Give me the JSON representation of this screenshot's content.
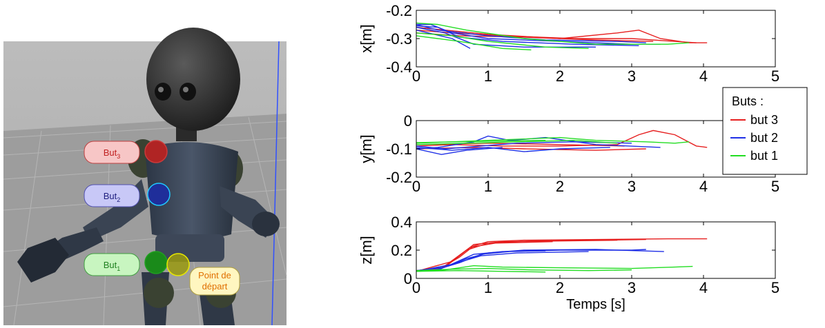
{
  "scene": {
    "labels": [
      {
        "id": "but3",
        "text": "But",
        "sub": "3",
        "fill": "#f7c6c6",
        "stroke": "#c04040",
        "text_color": "#c02020",
        "sphere": "#b02424"
      },
      {
        "id": "but2",
        "text": "But",
        "sub": "2",
        "fill": "#c8c8f7",
        "stroke": "#5050b0",
        "text_color": "#202080",
        "sphere": "#1f2e9a"
      },
      {
        "id": "but1",
        "text": "But",
        "sub": "1",
        "fill": "#c8f5c0",
        "stroke": "#40a040",
        "text_color": "#208020",
        "sphere": "#1a8a1a"
      },
      {
        "id": "start",
        "text": "Point de",
        "text2": "départ",
        "fill": "#fff6c0",
        "stroke": "#b0a040",
        "text_color": "#e07000",
        "sphere": "#9a9a10"
      }
    ]
  },
  "colors": {
    "but3": "#e61e1e",
    "but2": "#1e2ee6",
    "but1": "#22dd22"
  },
  "chart_data": [
    {
      "type": "line",
      "ylabel": "x[m]",
      "xlim": [
        0,
        5
      ],
      "ylim": [
        -0.4,
        -0.2
      ],
      "xticks": [
        "0",
        "1",
        "2",
        "3",
        "4",
        "5"
      ],
      "yticks": [
        "-0.4",
        "-0.3",
        "-0.2"
      ],
      "series": [
        {
          "name": "but 3",
          "color": "#e61e1e",
          "lines": [
            [
              [
                0,
                -0.26
              ],
              [
                0.4,
                -0.27
              ],
              [
                1,
                -0.285
              ],
              [
                2,
                -0.3
              ],
              [
                2.8,
                -0.28
              ],
              [
                3.1,
                -0.27
              ],
              [
                3.4,
                -0.3
              ],
              [
                3.8,
                -0.315
              ],
              [
                4.05,
                -0.315
              ]
            ],
            [
              [
                0,
                -0.27
              ],
              [
                0.5,
                -0.28
              ],
              [
                1.2,
                -0.29
              ],
              [
                2.2,
                -0.3
              ],
              [
                3.0,
                -0.3
              ],
              [
                3.6,
                -0.31
              ],
              [
                3.9,
                -0.315
              ]
            ],
            [
              [
                0,
                -0.28
              ],
              [
                0.6,
                -0.29
              ],
              [
                1.5,
                -0.295
              ],
              [
                2.5,
                -0.305
              ],
              [
                3.3,
                -0.31
              ]
            ]
          ]
        },
        {
          "name": "but 2",
          "color": "#1e2ee6",
          "lines": [
            [
              [
                0,
                -0.25
              ],
              [
                0.2,
                -0.25
              ],
              [
                0.5,
                -0.28
              ],
              [
                1,
                -0.3
              ],
              [
                2,
                -0.31
              ],
              [
                3,
                -0.32
              ],
              [
                3.4,
                -0.32
              ]
            ],
            [
              [
                0,
                -0.255
              ],
              [
                0.3,
                -0.26
              ],
              [
                0.6,
                -0.295
              ],
              [
                1.2,
                -0.31
              ],
              [
                2.2,
                -0.32
              ],
              [
                3.1,
                -0.325
              ]
            ],
            [
              [
                0,
                -0.26
              ],
              [
                0.4,
                -0.28
              ],
              [
                0.8,
                -0.32
              ],
              [
                1.5,
                -0.33
              ],
              [
                2.5,
                -0.33
              ]
            ],
            [
              [
                0,
                -0.27
              ],
              [
                0.5,
                -0.3
              ],
              [
                0.75,
                -0.335
              ]
            ],
            [
              [
                0,
                -0.25
              ],
              [
                0.3,
                -0.27
              ],
              [
                1,
                -0.29
              ],
              [
                1.8,
                -0.305
              ],
              [
                2.8,
                -0.31
              ],
              [
                3.2,
                -0.315
              ]
            ]
          ]
        },
        {
          "name": "but 1",
          "color": "#22dd22",
          "lines": [
            [
              [
                0,
                -0.245
              ],
              [
                0.3,
                -0.25
              ],
              [
                0.7,
                -0.27
              ],
              [
                1.5,
                -0.3
              ],
              [
                2.5,
                -0.32
              ],
              [
                3.5,
                -0.32
              ],
              [
                3.8,
                -0.315
              ]
            ],
            [
              [
                0,
                -0.28
              ],
              [
                0.5,
                -0.29
              ],
              [
                1,
                -0.31
              ],
              [
                1.8,
                -0.33
              ],
              [
                2.4,
                -0.335
              ]
            ],
            [
              [
                0,
                -0.29
              ],
              [
                0.6,
                -0.31
              ],
              [
                1.2,
                -0.335
              ],
              [
                1.6,
                -0.34
              ]
            ]
          ]
        }
      ]
    },
    {
      "type": "line",
      "ylabel": "y[m]",
      "xlim": [
        0,
        5
      ],
      "ylim": [
        -0.2,
        0
      ],
      "xticks": [
        "0",
        "1",
        "2",
        "3",
        "4",
        "5"
      ],
      "yticks": [
        "-0.2",
        "-0.1",
        "0"
      ],
      "series": [
        {
          "name": "but 3",
          "color": "#e61e1e",
          "lines": [
            [
              [
                0,
                -0.09
              ],
              [
                0.5,
                -0.085
              ],
              [
                1.2,
                -0.09
              ],
              [
                2,
                -0.09
              ],
              [
                2.8,
                -0.085
              ],
              [
                3.1,
                -0.05
              ],
              [
                3.3,
                -0.035
              ],
              [
                3.6,
                -0.05
              ],
              [
                3.9,
                -0.09
              ],
              [
                4.05,
                -0.095
              ]
            ],
            [
              [
                0,
                -0.1
              ],
              [
                0.8,
                -0.095
              ],
              [
                1.5,
                -0.1
              ],
              [
                2.5,
                -0.105
              ],
              [
                3.2,
                -0.1
              ]
            ],
            [
              [
                0,
                -0.085
              ],
              [
                1,
                -0.08
              ],
              [
                2,
                -0.085
              ],
              [
                2.9,
                -0.09
              ]
            ]
          ]
        },
        {
          "name": "but 2",
          "color": "#1e2ee6",
          "lines": [
            [
              [
                0,
                -0.1
              ],
              [
                0.3,
                -0.095
              ],
              [
                0.8,
                -0.075
              ],
              [
                1.0,
                -0.055
              ],
              [
                1.3,
                -0.07
              ],
              [
                1.8,
                -0.06
              ],
              [
                2.5,
                -0.085
              ],
              [
                3.4,
                -0.095
              ]
            ],
            [
              [
                0,
                -0.09
              ],
              [
                0.4,
                -0.1
              ],
              [
                0.9,
                -0.09
              ],
              [
                1.4,
                -0.08
              ],
              [
                2.2,
                -0.075
              ],
              [
                3.0,
                -0.08
              ]
            ],
            [
              [
                0,
                -0.095
              ],
              [
                0.5,
                -0.105
              ],
              [
                1,
                -0.095
              ],
              [
                1.5,
                -0.11
              ],
              [
                2,
                -0.1
              ],
              [
                2.7,
                -0.095
              ]
            ],
            [
              [
                0,
                -0.1
              ],
              [
                0.35,
                -0.12
              ],
              [
                0.7,
                -0.105
              ],
              [
                1.2,
                -0.095
              ]
            ]
          ]
        },
        {
          "name": "but 1",
          "color": "#22dd22",
          "lines": [
            [
              [
                0,
                -0.08
              ],
              [
                0.5,
                -0.075
              ],
              [
                1,
                -0.07
              ],
              [
                1.5,
                -0.065
              ],
              [
                2,
                -0.06
              ],
              [
                2.5,
                -0.07
              ],
              [
                3.2,
                -0.075
              ],
              [
                3.6,
                -0.08
              ],
              [
                3.8,
                -0.075
              ]
            ],
            [
              [
                0,
                -0.085
              ],
              [
                0.7,
                -0.08
              ],
              [
                1.4,
                -0.075
              ],
              [
                2.2,
                -0.07
              ],
              [
                2.8,
                -0.08
              ]
            ],
            [
              [
                0,
                -0.078
              ],
              [
                1,
                -0.073
              ],
              [
                1.8,
                -0.07
              ]
            ]
          ]
        }
      ]
    },
    {
      "type": "line",
      "ylabel": "z[m]",
      "xlabel": "Temps [s]",
      "xlim": [
        0,
        5
      ],
      "ylim": [
        0,
        0.4
      ],
      "xticks": [
        "0",
        "1",
        "2",
        "3",
        "4",
        "5"
      ],
      "yticks": [
        "0",
        "0.2",
        "0.4"
      ],
      "series": [
        {
          "name": "but 3",
          "color": "#e61e1e",
          "lines": [
            [
              [
                0,
                0.05
              ],
              [
                0.3,
                0.06
              ],
              [
                0.6,
                0.15
              ],
              [
                0.8,
                0.23
              ],
              [
                1.0,
                0.26
              ],
              [
                1.5,
                0.27
              ],
              [
                2.5,
                0.275
              ],
              [
                3.5,
                0.28
              ],
              [
                4.05,
                0.28
              ]
            ],
            [
              [
                0,
                0.055
              ],
              [
                0.4,
                0.08
              ],
              [
                0.7,
                0.2
              ],
              [
                1.0,
                0.25
              ],
              [
                1.6,
                0.265
              ],
              [
                2.5,
                0.27
              ],
              [
                3.2,
                0.275
              ]
            ],
            [
              [
                0,
                0.05
              ],
              [
                0.5,
                0.12
              ],
              [
                0.8,
                0.24
              ],
              [
                1.2,
                0.26
              ],
              [
                2.0,
                0.265
              ],
              [
                2.8,
                0.27
              ]
            ],
            [
              [
                0,
                0.05
              ],
              [
                0.35,
                0.07
              ],
              [
                0.75,
                0.22
              ],
              [
                1.1,
                0.25
              ],
              [
                1.9,
                0.26
              ]
            ]
          ]
        },
        {
          "name": "but 2",
          "color": "#1e2ee6",
          "lines": [
            [
              [
                0,
                0.05
              ],
              [
                0.3,
                0.06
              ],
              [
                0.7,
                0.14
              ],
              [
                1.0,
                0.18
              ],
              [
                1.5,
                0.2
              ],
              [
                2.5,
                0.205
              ],
              [
                3.45,
                0.19
              ]
            ],
            [
              [
                0,
                0.055
              ],
              [
                0.4,
                0.08
              ],
              [
                0.8,
                0.17
              ],
              [
                1.2,
                0.19
              ],
              [
                2.0,
                0.2
              ],
              [
                3.0,
                0.2
              ],
              [
                3.2,
                0.205
              ]
            ],
            [
              [
                0,
                0.05
              ],
              [
                0.5,
                0.1
              ],
              [
                0.9,
                0.16
              ],
              [
                1.4,
                0.18
              ],
              [
                2.4,
                0.19
              ]
            ],
            [
              [
                0,
                0.05
              ],
              [
                0.3,
                0.065
              ],
              [
                0.6,
                0.11
              ],
              [
                0.9,
                0.17
              ],
              [
                1.3,
                0.19
              ],
              [
                1.8,
                0.195
              ]
            ]
          ]
        },
        {
          "name": "but 1",
          "color": "#22dd22",
          "lines": [
            [
              [
                0,
                0.05
              ],
              [
                0.4,
                0.06
              ],
              [
                0.8,
                0.09
              ],
              [
                1.2,
                0.08
              ],
              [
                2.0,
                0.075
              ],
              [
                3.0,
                0.07
              ],
              [
                3.6,
                0.08
              ],
              [
                3.85,
                0.085
              ]
            ],
            [
              [
                0,
                0.055
              ],
              [
                0.5,
                0.065
              ],
              [
                1,
                0.07
              ],
              [
                1.6,
                0.06
              ],
              [
                2.4,
                0.055
              ],
              [
                3.0,
                0.06
              ]
            ],
            [
              [
                0,
                0.05
              ],
              [
                0.6,
                0.055
              ],
              [
                1.2,
                0.05
              ],
              [
                1.8,
                0.045
              ]
            ]
          ]
        }
      ]
    }
  ],
  "legend": {
    "title": "Buts :",
    "items": [
      {
        "label": "but 3",
        "color": "#e61e1e"
      },
      {
        "label": "but 2",
        "color": "#1e2ee6"
      },
      {
        "label": "but 1",
        "color": "#22dd22"
      }
    ]
  }
}
